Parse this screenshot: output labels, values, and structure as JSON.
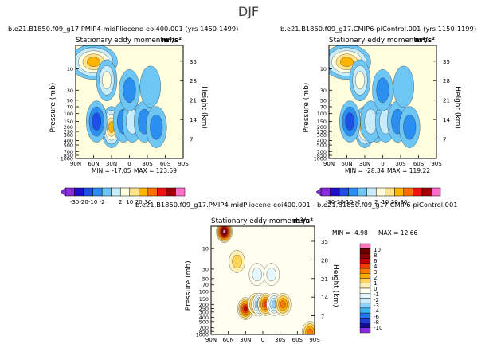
{
  "page_title": "DJF",
  "palettes": {
    "abs_colors": [
      "#8a2be2",
      "#1e10c8",
      "#1e50e6",
      "#2a8ff0",
      "#6ec6f5",
      "#c8ecfa",
      "#ffffe0",
      "#ffe28a",
      "#ffb400",
      "#ff7000",
      "#f01414",
      "#a00000",
      "#ff6ec8"
    ],
    "diff_colors": [
      "#8a2be2",
      "#10108c",
      "#1e3cd2",
      "#1e78f0",
      "#3cb4f5",
      "#8cd2fa",
      "#c8ecfa",
      "#e6f7fd",
      "#fffff0",
      "#fff0b4",
      "#ffd25a",
      "#ffaa00",
      "#ff7800",
      "#f03c00",
      "#c80000",
      "#8c0000",
      "#6e0000",
      "#ff78be"
    ]
  },
  "chart_data": [
    {
      "type": "heatmap",
      "run_label": "b.e21.B1850.f09_g17.PMIP4-midPliocene-eoi400.001 (yrs 1450-1499)",
      "title": "Stationary eddy momentum",
      "units": "m²/s²",
      "ylabel": "Pressure (mb)",
      "ylabel_right": "Height (km)",
      "x_ticks": [
        "90N",
        "60N",
        "30N",
        "0",
        "30S",
        "60S",
        "90S"
      ],
      "p_ticks": [
        "10",
        "30",
        "50",
        "70",
        "100",
        "150",
        "200",
        "250",
        "300",
        "400",
        "500",
        "700",
        "850",
        "1000"
      ],
      "km_ticks": [
        "35",
        "28",
        "21",
        "14",
        "7"
      ],
      "xlim": [
        "90N",
        "90S"
      ],
      "ylim_mb": [
        1000,
        3
      ],
      "min_label": "MIN = -17.05",
      "max_label": "MAX = 123.59",
      "min": -17.05,
      "max": 123.59,
      "levels": [
        -30,
        -20,
        -10,
        -2,
        2,
        10,
        20,
        30
      ],
      "level_labels": [
        "-30",
        "-20",
        "-10",
        "-2",
        "2",
        "10",
        "20",
        "30"
      ],
      "features": [
        {
          "lat": 60,
          "p": 7,
          "value": 123.59
        },
        {
          "lat": 38,
          "p": 18,
          "value": 12
        },
        {
          "lat": 30,
          "p": 200,
          "value": 40
        },
        {
          "lat": 55,
          "p": 150,
          "value": -17
        },
        {
          "lat": 10,
          "p": 150,
          "value": -6
        },
        {
          "lat": -5,
          "p": 150,
          "value": 10
        },
        {
          "lat": -25,
          "p": 150,
          "value": -5
        },
        {
          "lat": -45,
          "p": 200,
          "value": -4
        },
        {
          "lat": 0,
          "p": 30,
          "value": -4
        },
        {
          "lat": -35,
          "p": 25,
          "value": 2
        }
      ]
    },
    {
      "type": "heatmap",
      "run_label": "b.e21.B1850.f09_g17.CMIP6-piControl.001 (yrs 1150-1199)",
      "title": "Stationary eddy momentum",
      "units": "m²/s²",
      "ylabel": "Pressure (mb)",
      "ylabel_right": "Height (km)",
      "x_ticks": [
        "90N",
        "60N",
        "30N",
        "0",
        "30S",
        "60S",
        "90S"
      ],
      "p_ticks": [
        "10",
        "30",
        "50",
        "70",
        "100",
        "150",
        "200",
        "250",
        "300",
        "400",
        "500",
        "700",
        "850",
        "1000"
      ],
      "km_ticks": [
        "35",
        "28",
        "21",
        "14",
        "7"
      ],
      "xlim": [
        "90N",
        "90S"
      ],
      "ylim_mb": [
        1000,
        3
      ],
      "min_label": "MIN = -28.34",
      "max_label": "MAX = 119.22",
      "min": -28.34,
      "max": 119.22,
      "levels": [
        -30,
        -20,
        -10,
        -2,
        2,
        10,
        20,
        30
      ],
      "level_labels": [
        "-30",
        "-20",
        "-10",
        "-2",
        "2",
        "10",
        "20",
        "30"
      ],
      "features": [
        {
          "lat": 60,
          "p": 7,
          "value": 119.22
        },
        {
          "lat": 38,
          "p": 18,
          "value": 12
        },
        {
          "lat": 30,
          "p": 200,
          "value": 40
        },
        {
          "lat": 55,
          "p": 150,
          "value": -17
        },
        {
          "lat": 10,
          "p": 150,
          "value": -28
        },
        {
          "lat": 20,
          "p": 150,
          "value": 8
        },
        {
          "lat": -5,
          "p": 150,
          "value": 8
        },
        {
          "lat": -25,
          "p": 150,
          "value": -8
        },
        {
          "lat": -45,
          "p": 200,
          "value": -4
        },
        {
          "lat": 0,
          "p": 30,
          "value": -4
        },
        {
          "lat": -35,
          "p": 25,
          "value": 2
        }
      ]
    },
    {
      "type": "heatmap",
      "run_label": "b.e21.B1850.f09_g17.PMIP4-midPliocene-eoi400.001 - b.e21.B1850.f09_g17.CMIP6-piControl.001",
      "title": "Stationary eddy momentum",
      "units": "m²/s²",
      "ylabel": "Pressure (mb)",
      "ylabel_right": "Height (km)",
      "x_ticks": [
        "90N",
        "60N",
        "30N",
        "0",
        "30S",
        "60S",
        "90S"
      ],
      "p_ticks": [
        "10",
        "30",
        "50",
        "70",
        "100",
        "150",
        "200",
        "250",
        "300",
        "400",
        "500",
        "700",
        "850",
        "1000"
      ],
      "km_ticks": [
        "35",
        "28",
        "21",
        "14",
        "7"
      ],
      "xlim": [
        "90N",
        "90S"
      ],
      "ylim_mb": [
        1000,
        3
      ],
      "min_label": "MIN = -4.98",
      "max_label": "MAX = 12.66",
      "min": -4.98,
      "max": 12.66,
      "levels": [
        -10,
        -8,
        -6,
        -4,
        -3,
        -2,
        -1,
        -0.5,
        0,
        0.5,
        1,
        2,
        3,
        4,
        6,
        8,
        10
      ],
      "level_labels": [
        "10",
        "8",
        "6",
        "4",
        "3",
        "2",
        "1",
        "0",
        "-1",
        "-2",
        "-3",
        "-4",
        "-6",
        "-8",
        "-10"
      ],
      "features": [
        {
          "lat": 67,
          "p": 4,
          "value": 12.66
        },
        {
          "lat": 45,
          "p": 20,
          "value": 1
        },
        {
          "lat": 30,
          "p": 250,
          "value": 5
        },
        {
          "lat": 12,
          "p": 200,
          "value": 3
        },
        {
          "lat": 5,
          "p": 200,
          "value": -4
        },
        {
          "lat": -5,
          "p": 200,
          "value": 4
        },
        {
          "lat": -20,
          "p": 200,
          "value": -3
        },
        {
          "lat": -35,
          "p": 200,
          "value": 3
        },
        {
          "lat": 10,
          "p": 40,
          "value": -1
        },
        {
          "lat": -15,
          "p": 40,
          "value": -1
        },
        {
          "lat": -82,
          "p": 900,
          "value": 3
        }
      ]
    }
  ]
}
